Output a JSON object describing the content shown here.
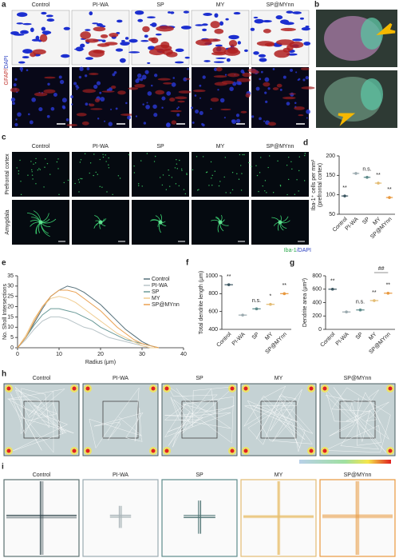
{
  "figure": {
    "a": {
      "label": "a",
      "columns": [
        "Control",
        "PI-WA",
        "SP",
        "MY",
        "SP@MYnn"
      ],
      "ylabel_red": "GFAP/",
      "ylabel_blue": "DAPI"
    },
    "b": {
      "label": "b"
    },
    "c": {
      "label": "c",
      "columns": [
        "Control",
        "PI-WA",
        "SP",
        "MY",
        "SP@MYnn"
      ],
      "rows": [
        "Prefrontal cortex",
        "Amygdala"
      ],
      "legend_green": "Iba-1",
      "legend_blue": "/DAPI"
    },
    "h": {
      "label": "h",
      "columns": [
        "Control",
        "PI-WA",
        "SP",
        "MY",
        "SP@MYnn"
      ]
    },
    "i": {
      "label": "i",
      "columns": [
        "Control",
        "PI-WA",
        "SP",
        "MY",
        "SP@MYnn"
      ]
    }
  },
  "chart_data": [
    {
      "type": "dot",
      "label": "d",
      "ylabel": "Iba-1⁺ cells per mm²",
      "ylabel_sub": "(prefrontal cortex)",
      "categories": [
        "Control",
        "PI-WA",
        "SP",
        "MY",
        "SP@MYnn"
      ],
      "values": [
        97,
        155,
        145,
        130,
        93
      ],
      "colors": [
        "#3b5560",
        "#9aa9ae",
        "#5c8a8a",
        "#e3bb72",
        "#e8983e"
      ],
      "annotations": [
        "**",
        null,
        "n.s.",
        "**",
        "**"
      ],
      "ylim": [
        50,
        200
      ],
      "yticks": [
        50,
        100,
        150,
        200
      ]
    },
    {
      "type": "line",
      "label": "e",
      "xlabel": "Radius (μm)",
      "ylabel": "No. Sholl Intersections",
      "x": [
        0,
        2,
        4,
        6,
        8,
        10,
        12,
        14,
        16,
        18,
        20,
        22,
        24,
        26,
        28,
        30,
        32,
        34
      ],
      "series": [
        {
          "name": "Control",
          "color": "#55707a",
          "values": [
            0,
            5,
            12,
            19,
            25,
            28,
            30,
            29,
            27,
            24,
            21,
            17,
            13,
            9,
            6,
            3,
            1,
            0
          ]
        },
        {
          "name": "PI-WA",
          "color": "#b8c4c8",
          "values": [
            0,
            4,
            9,
            13,
            15,
            15,
            14,
            12,
            10,
            9,
            7,
            5,
            4,
            3,
            2,
            1,
            0,
            0
          ]
        },
        {
          "name": "SP",
          "color": "#6a9a98",
          "values": [
            0,
            5,
            11,
            16,
            19,
            19,
            18,
            17,
            15,
            13,
            10,
            8,
            6,
            4,
            3,
            2,
            1,
            0
          ]
        },
        {
          "name": "MY",
          "color": "#f0cc90",
          "values": [
            0,
            6,
            14,
            20,
            24,
            25,
            24,
            22,
            19,
            16,
            13,
            10,
            7,
            5,
            3,
            1,
            0,
            0
          ]
        },
        {
          "name": "SP@MYnn",
          "color": "#eaa050",
          "values": [
            0,
            5,
            13,
            20,
            25,
            28,
            28,
            27,
            24,
            21,
            18,
            14,
            10,
            7,
            4,
            2,
            1,
            0
          ]
        }
      ],
      "xlim": [
        0,
        40
      ],
      "ylim": [
        0,
        35
      ],
      "xticks": [
        0,
        10,
        20,
        30,
        40
      ],
      "yticks": [
        0,
        5,
        10,
        15,
        20,
        25,
        30,
        35
      ],
      "legend": "upper right"
    },
    {
      "type": "dot",
      "label": "f",
      "ylabel": "Total dendrite length (μm)",
      "categories": [
        "Control",
        "PI-WA",
        "SP",
        "MY",
        "SP@MYnn"
      ],
      "values": [
        900,
        560,
        630,
        680,
        800
      ],
      "colors": [
        "#3b5560",
        "#9aa9ae",
        "#5c8a8a",
        "#e3bb72",
        "#e8983e"
      ],
      "annotations": [
        "**",
        null,
        "n.s.",
        "*",
        "**"
      ],
      "ylim": [
        400,
        1000
      ],
      "yticks": [
        400,
        600,
        800,
        1000
      ]
    },
    {
      "type": "dot",
      "label": "g",
      "ylabel": "Dendrite area (μm²)",
      "categories": [
        "Control",
        "PI-WA",
        "SP",
        "MY",
        "SP@MYnn"
      ],
      "values": [
        600,
        260,
        290,
        430,
        540
      ],
      "colors": [
        "#3b5560",
        "#9aa9ae",
        "#5c8a8a",
        "#e3bb72",
        "#e8983e"
      ],
      "annotations": [
        "**",
        null,
        "n.s.",
        "**",
        "**"
      ],
      "bracket_label": "##",
      "ylim": [
        0,
        800
      ],
      "yticks": [
        0,
        200,
        400,
        600,
        800
      ]
    }
  ]
}
